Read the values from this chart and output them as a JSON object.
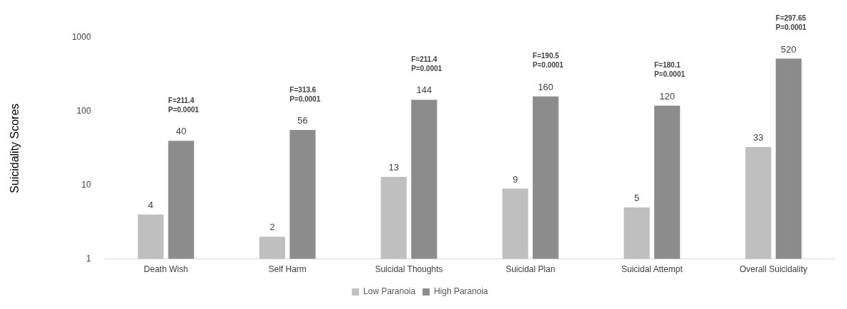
{
  "chart_data": {
    "type": "bar",
    "ylabel": "Suicidality Scores",
    "categories": [
      "Death Wish",
      "Self Harm",
      "Suicidal Thoughts",
      "Suicidal Plan",
      "Suicidal Attempt",
      "Overall Suicidality"
    ],
    "series": [
      {
        "name": "Low Paranoia",
        "color": "#bfbfbf",
        "values": [
          4,
          2,
          13,
          9,
          5,
          33
        ]
      },
      {
        "name": "High Paranoia",
        "color": "#8c8c8c",
        "values": [
          40,
          56,
          144,
          160,
          120,
          520
        ]
      }
    ],
    "log": "y",
    "ylim": [
      1,
      1000
    ],
    "yticks": [
      1,
      10,
      100,
      1000
    ],
    "grid": false,
    "legend": "bottom",
    "data_labels": true,
    "annotations": [
      "F=211.4\nP=0.0001",
      "F=313.6\nP=0.0001",
      "F=211.4\nP=0.0001",
      "F=190.5\nP=0.0001",
      "F=180.1\nP=0.0001",
      "F=297.65\nP=0.0001"
    ]
  }
}
